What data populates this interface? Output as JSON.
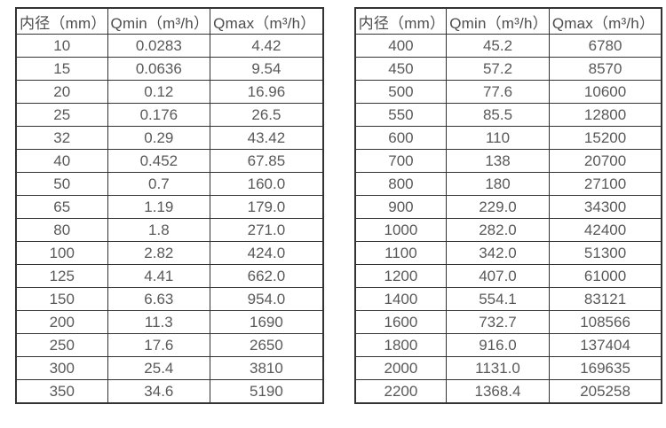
{
  "styles": {
    "border_color": "#333333",
    "header_text_color": "#4d4d4d",
    "cell_text_color": "#595959",
    "background_color": "#ffffff"
  },
  "tables": [
    {
      "name": "flow-table-small-diameters",
      "headers": [
        "内径（mm）",
        "Qmin（m³/h）",
        "Qmax（m³/h）"
      ],
      "rows": [
        [
          "10",
          "0.0283",
          "4.42"
        ],
        [
          "15",
          "0.0636",
          "9.54"
        ],
        [
          "20",
          "0.12",
          "16.96"
        ],
        [
          "25",
          "0.176",
          "26.5"
        ],
        [
          "32",
          "0.29",
          "43.42"
        ],
        [
          "40",
          "0.452",
          "67.85"
        ],
        [
          "50",
          "0.7",
          "160.0"
        ],
        [
          "65",
          "1.19",
          "179.0"
        ],
        [
          "80",
          "1.8",
          "271.0"
        ],
        [
          "100",
          "2.82",
          "424.0"
        ],
        [
          "125",
          "4.41",
          "662.0"
        ],
        [
          "150",
          "6.63",
          "954.0"
        ],
        [
          "200",
          "11.3",
          "1690"
        ],
        [
          "250",
          "17.6",
          "2650"
        ],
        [
          "300",
          "25.4",
          "3810"
        ],
        [
          "350",
          "34.6",
          "5190"
        ]
      ]
    },
    {
      "name": "flow-table-large-diameters",
      "headers": [
        "内径（mm）",
        "Qmin（m³/h）",
        "Qmax（m³/h）"
      ],
      "rows": [
        [
          "400",
          "45.2",
          "6780"
        ],
        [
          "450",
          "57.2",
          "8570"
        ],
        [
          "500",
          "77.6",
          "10600"
        ],
        [
          "550",
          "85.5",
          "12800"
        ],
        [
          "600",
          "110",
          "15200"
        ],
        [
          "700",
          "138",
          "20700"
        ],
        [
          "800",
          "180",
          "27100"
        ],
        [
          "900",
          "229.0",
          "34300"
        ],
        [
          "1000",
          "282.0",
          "42400"
        ],
        [
          "1100",
          "342.0",
          "51300"
        ],
        [
          "1200",
          "407.0",
          "61000"
        ],
        [
          "1400",
          "554.1",
          "83121"
        ],
        [
          "1600",
          "732.7",
          "108566"
        ],
        [
          "1800",
          "916.0",
          "137404"
        ],
        [
          "2000",
          "1131.0",
          "169635"
        ],
        [
          "2200",
          "1368.4",
          "205258"
        ]
      ]
    }
  ]
}
